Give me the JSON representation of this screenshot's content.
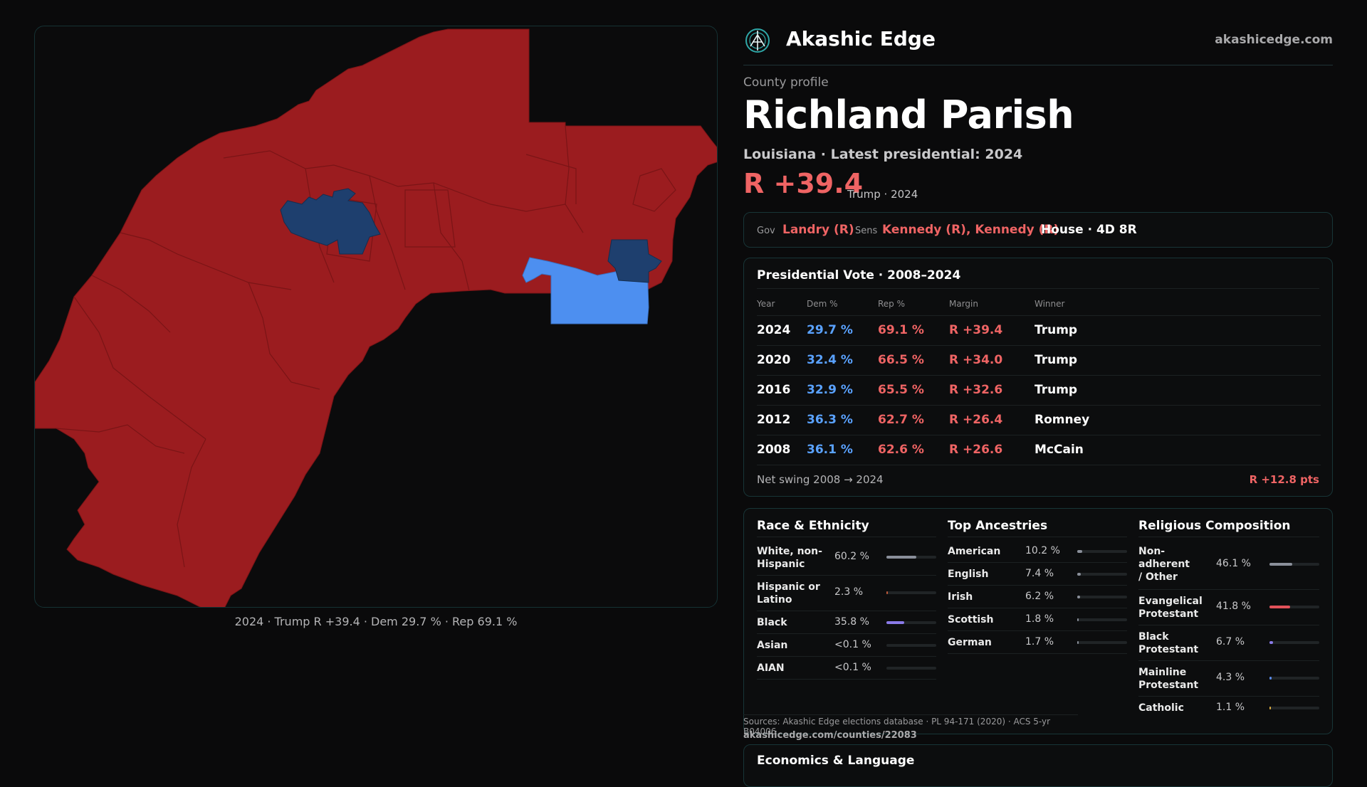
{
  "map": {
    "caption": "2024 · Trump R +39.4 · Dem 29.7 % · Rep 69.1 %",
    "colors": {
      "rep": "#9b1c1f",
      "dem_dark": "#1e3f6e",
      "dem_light": "#4d8ff0",
      "border": "#7a1416"
    }
  },
  "brand": {
    "name": "Akashic Edge",
    "site": "akashicedge.com",
    "logo_icon": "compass-globe-icon"
  },
  "profile": {
    "eyebrow": "County profile",
    "county": "Richland Parish",
    "subline": "Louisiana · Latest presidential: 2024",
    "margin": "R +39.4",
    "margin_note": "Trump · 2024"
  },
  "officials": {
    "gov_label": "Gov",
    "gov": "Landry (R)",
    "sens_label": "Sens",
    "sens": "Kennedy (R), Kennedy (R)",
    "house": "House · 4D 8R"
  },
  "presidential": {
    "title": "Presidential Vote · 2008–2024",
    "headers": [
      "Year",
      "Dem %",
      "Rep %",
      "Margin",
      "Winner"
    ],
    "rows": [
      {
        "year": "2024",
        "dem": "29.7 %",
        "rep": "69.1 %",
        "margin": "R +39.4",
        "winner": "Trump"
      },
      {
        "year": "2020",
        "dem": "32.4 %",
        "rep": "66.5 %",
        "margin": "R +34.0",
        "winner": "Trump"
      },
      {
        "year": "2016",
        "dem": "32.9 %",
        "rep": "65.5 %",
        "margin": "R +32.6",
        "winner": "Trump"
      },
      {
        "year": "2012",
        "dem": "36.3 %",
        "rep": "62.7 %",
        "margin": "R +26.4",
        "winner": "Romney"
      },
      {
        "year": "2008",
        "dem": "36.1 %",
        "rep": "62.6 %",
        "margin": "R +26.6",
        "winner": "McCain"
      }
    ],
    "swing_label": "Net swing 2008 → 2024",
    "swing_value": "R +12.8 pts"
  },
  "race": {
    "title": "Race & Ethnicity",
    "rows": [
      {
        "label": "White, non-Hispanic",
        "pct": "60.2 %",
        "value": 60.2,
        "color": "#8a8f9a"
      },
      {
        "label": "Hispanic or Latino",
        "pct": "2.3 %",
        "value": 2.3,
        "color": "#c05a3a"
      },
      {
        "label": "Black",
        "pct": "35.8 %",
        "value": 35.8,
        "color": "#8a7ae8"
      },
      {
        "label": "Asian",
        "pct": "<0.1 %",
        "value": 0,
        "color": "#8a8f9a"
      },
      {
        "label": "AIAN",
        "pct": "<0.1 %",
        "value": 0,
        "color": "#8a8f9a"
      }
    ]
  },
  "ancestry": {
    "title": "Top Ancestries",
    "rows": [
      {
        "label": "American",
        "pct": "10.2 %",
        "value": 10.2,
        "color": "#8a8f9a"
      },
      {
        "label": "English",
        "pct": "7.4 %",
        "value": 7.4,
        "color": "#8a8f9a"
      },
      {
        "label": "Irish",
        "pct": "6.2 %",
        "value": 6.2,
        "color": "#8a8f9a"
      },
      {
        "label": "Scottish",
        "pct": "1.8 %",
        "value": 1.8,
        "color": "#8a8f9a"
      },
      {
        "label": "German",
        "pct": "1.7 %",
        "value": 1.7,
        "color": "#8a8f9a"
      }
    ]
  },
  "religion": {
    "title": "Religious Composition",
    "rows": [
      {
        "label": "Non-adherent / Other",
        "pct": "46.1 %",
        "value": 46.1,
        "color": "#8a8f9a"
      },
      {
        "label": "Evangelical Protestant",
        "pct": "41.8 %",
        "value": 41.8,
        "color": "#e2525a"
      },
      {
        "label": "Black Protestant",
        "pct": "6.7 %",
        "value": 6.7,
        "color": "#8a7ae8"
      },
      {
        "label": "Mainline Protestant",
        "pct": "4.3 %",
        "value": 4.3,
        "color": "#5a8ae8"
      },
      {
        "label": "Catholic",
        "pct": "1.1 %",
        "value": 1.1,
        "color": "#e0b040"
      }
    ]
  },
  "sources": {
    "text": "Sources: Akashic Edge elections database · PL 94-171 (2020) · ACS 5-yr B04006",
    "url": "akashicedge.com/counties/22083"
  },
  "economics": {
    "title": "Economics & Language"
  }
}
